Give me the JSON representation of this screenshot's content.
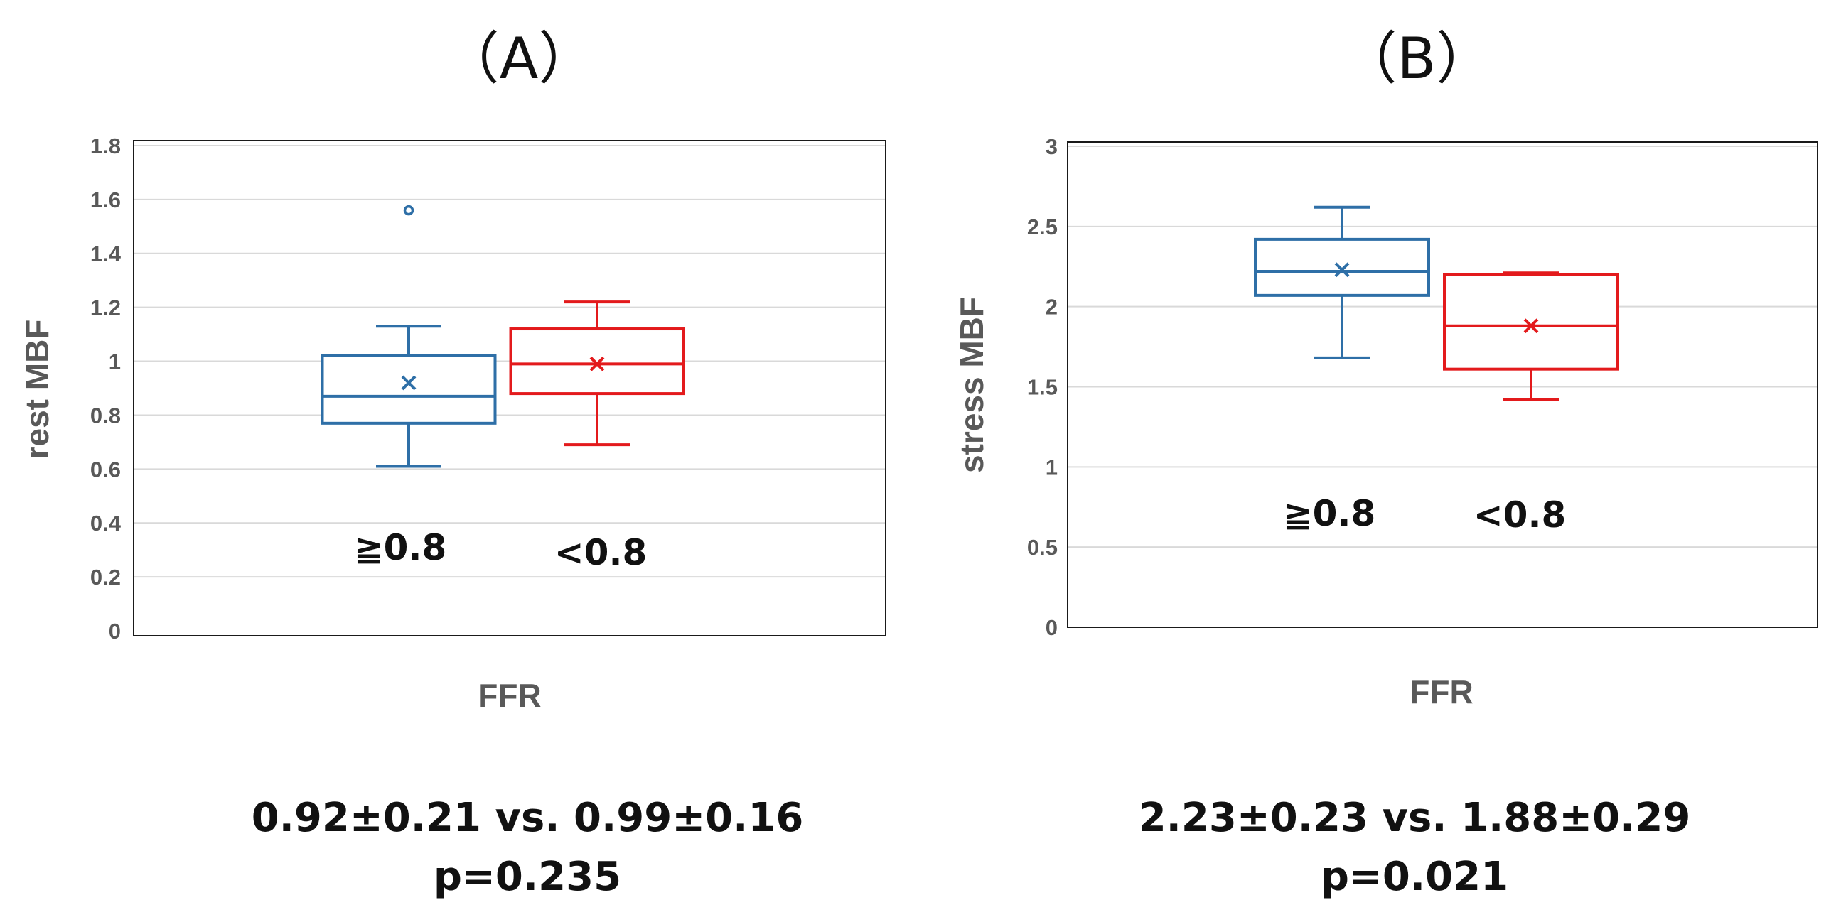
{
  "chart_data": [
    {
      "type": "box",
      "title": "（A）",
      "xlabel": "FFR",
      "ylabel": "rest MBF",
      "ylim": [
        0,
        1.8
      ],
      "yticks": [
        0,
        0.2,
        0.4,
        0.6,
        0.8,
        1,
        1.2,
        1.4,
        1.6,
        1.8
      ],
      "ytick_labels": [
        "0",
        "0.2",
        "0.4",
        "0.6",
        "0.8",
        "1",
        "1.2",
        "1.4",
        "1.6",
        "1.8"
      ],
      "grid": true,
      "series": [
        {
          "name": "≧0.8",
          "color": "#2e6fa7",
          "min": 0.61,
          "q1": 0.77,
          "median": 0.87,
          "q3": 1.02,
          "max": 1.13,
          "mean": 0.92,
          "outliers": [
            1.56
          ]
        },
        {
          "name": "<0.8",
          "color": "#e31a1c",
          "min": 0.69,
          "q1": 0.88,
          "median": 0.99,
          "q3": 1.12,
          "max": 1.22,
          "mean": 0.99,
          "outliers": []
        }
      ],
      "group_labels": [
        "≧0.8",
        "<0.8"
      ],
      "stat_line1": "0.92±0.21 vs. 0.99±0.16",
      "stat_line2": "p=0.235"
    },
    {
      "type": "box",
      "title": "（B）",
      "xlabel": "FFR",
      "ylabel": "stress MBF",
      "ylim": [
        0,
        3
      ],
      "yticks": [
        0,
        0.5,
        1,
        1.5,
        2,
        2.5,
        3
      ],
      "ytick_labels": [
        "0",
        "0.5",
        "1",
        "1.5",
        "2",
        "2.5",
        "3"
      ],
      "grid": true,
      "series": [
        {
          "name": "≧0.8",
          "color": "#2e6fa7",
          "min": 1.68,
          "q1": 2.07,
          "median": 2.22,
          "q3": 2.42,
          "max": 2.62,
          "mean": 2.23,
          "outliers": []
        },
        {
          "name": "<0.8",
          "color": "#e31a1c",
          "min": 1.42,
          "q1": 1.61,
          "median": 1.88,
          "q3": 2.2,
          "max": 2.21,
          "mean": 1.88,
          "outliers": []
        }
      ],
      "group_labels": [
        "≧0.8",
        "<0.8"
      ],
      "stat_line1": "2.23±0.23 vs. 1.88±0.29",
      "stat_line2": "p=0.021"
    }
  ]
}
